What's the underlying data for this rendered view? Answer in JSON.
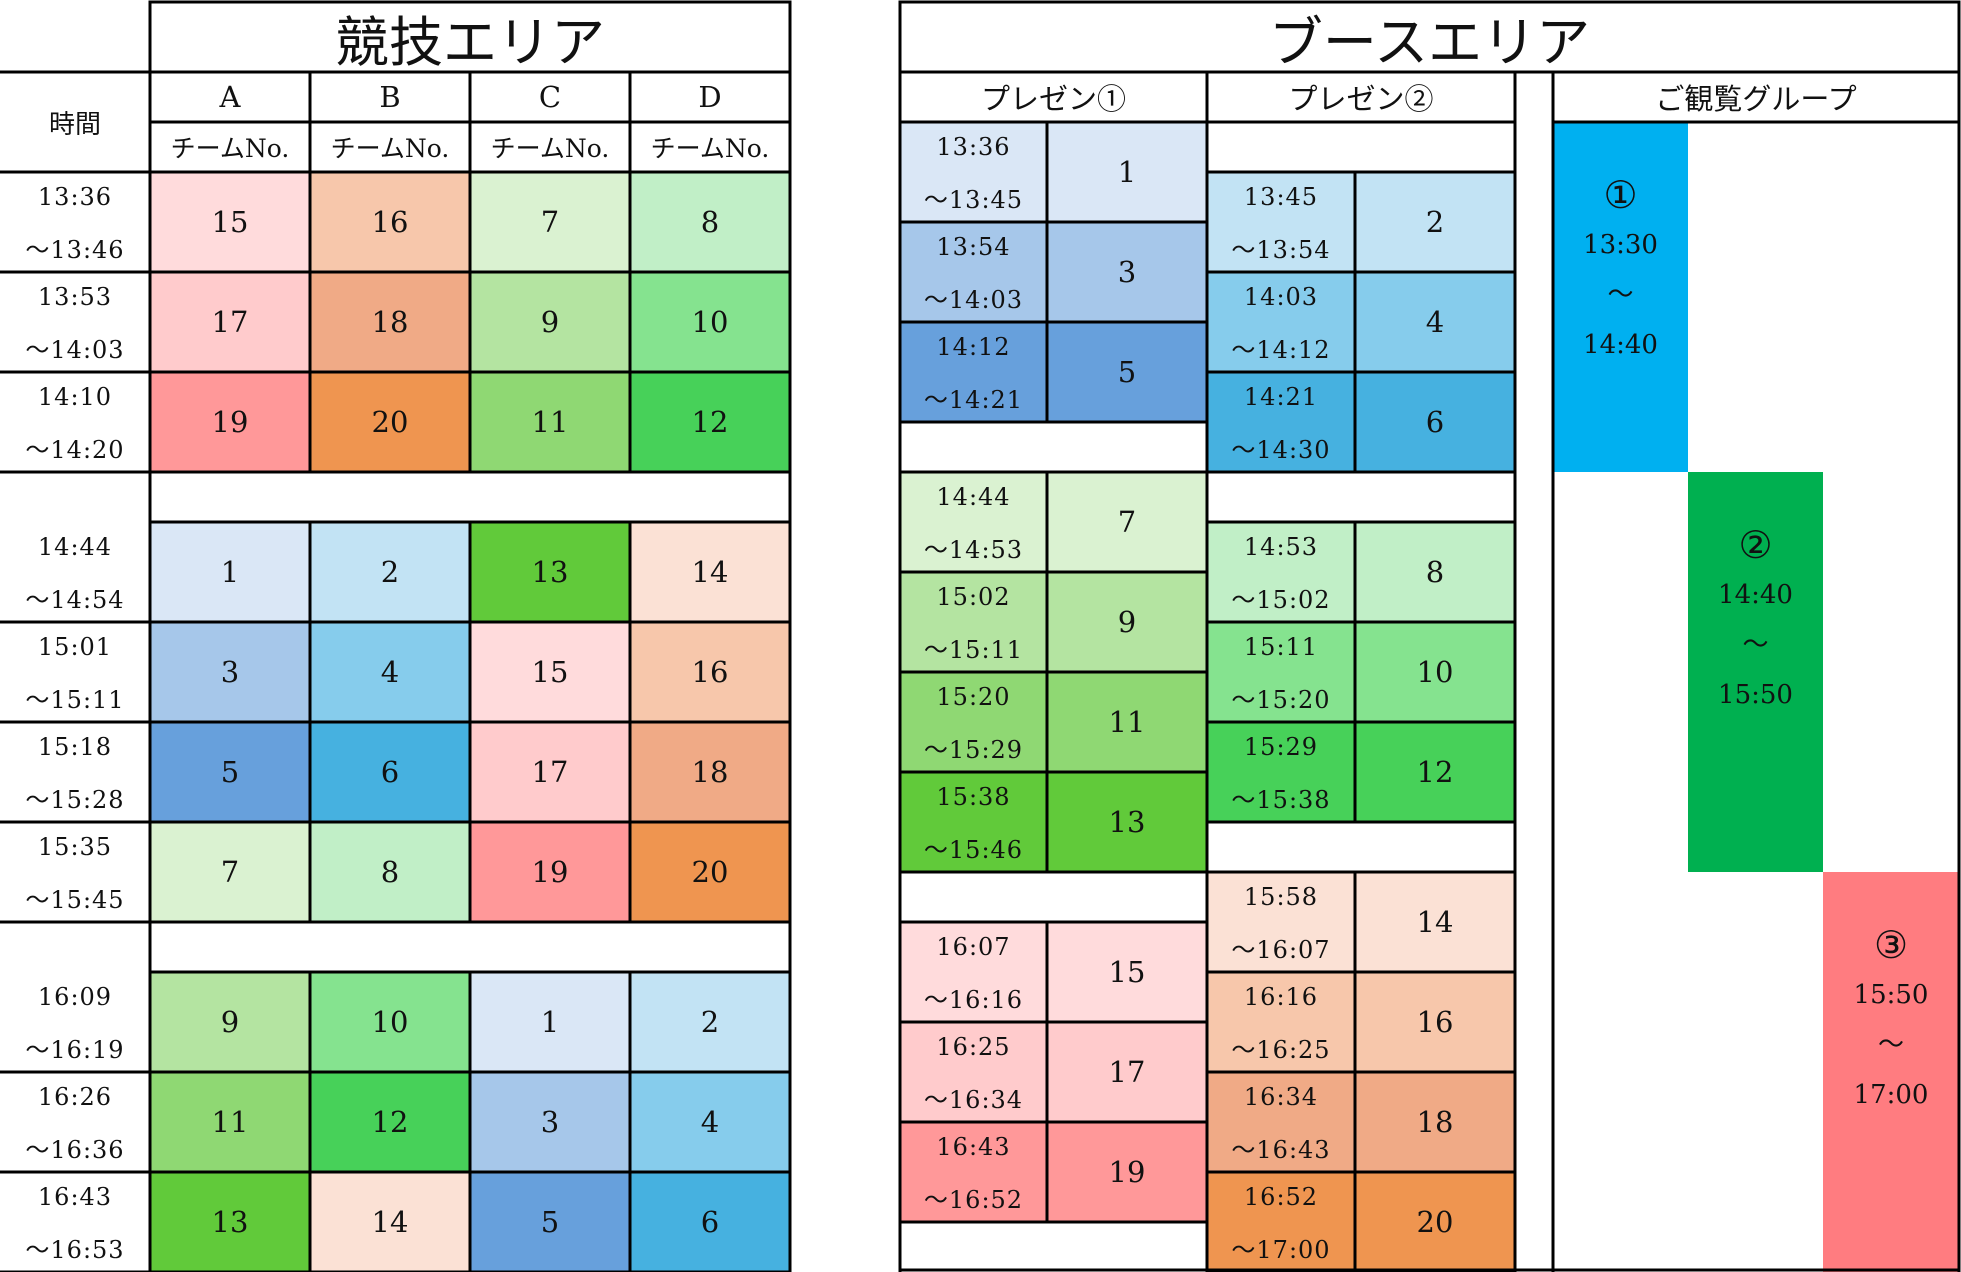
{
  "competition": {
    "title": "競技エリア",
    "time_header": "時間",
    "lanes": [
      "A",
      "B",
      "C",
      "D"
    ],
    "lane_subheader": "チームNo.",
    "blocks": [
      [
        {
          "start": "13:36",
          "end": "〜13:46",
          "teams": [
            "15",
            "16",
            "7",
            "8"
          ]
        },
        {
          "start": "13:53",
          "end": "〜14:03",
          "teams": [
            "17",
            "18",
            "9",
            "10"
          ]
        },
        {
          "start": "14:10",
          "end": "〜14:20",
          "teams": [
            "19",
            "20",
            "11",
            "12"
          ]
        }
      ],
      [
        {
          "start": "14:44",
          "end": "〜14:54",
          "teams": [
            "1",
            "2",
            "13",
            "14"
          ]
        },
        {
          "start": "15:01",
          "end": "〜15:11",
          "teams": [
            "3",
            "4",
            "15",
            "16"
          ]
        },
        {
          "start": "15:18",
          "end": "〜15:28",
          "teams": [
            "5",
            "6",
            "17",
            "18"
          ]
        },
        {
          "start": "15:35",
          "end": "〜15:45",
          "teams": [
            "7",
            "8",
            "19",
            "20"
          ]
        }
      ],
      [
        {
          "start": "16:09",
          "end": "〜16:19",
          "teams": [
            "9",
            "10",
            "1",
            "2"
          ]
        },
        {
          "start": "16:26",
          "end": "〜16:36",
          "teams": [
            "11",
            "12",
            "3",
            "4"
          ]
        },
        {
          "start": "16:43",
          "end": "〜16:53",
          "teams": [
            "13",
            "14",
            "5",
            "6"
          ]
        }
      ]
    ]
  },
  "booth": {
    "title": "ブースエリア",
    "presentation1": {
      "header": "プレゼン①",
      "blocks": [
        [
          {
            "start": "13:36",
            "end": "〜13:45",
            "team": "1"
          },
          {
            "start": "13:54",
            "end": "〜14:03",
            "team": "3"
          },
          {
            "start": "14:12",
            "end": "〜14:21",
            "team": "5"
          }
        ],
        [
          {
            "start": "14:44",
            "end": "〜14:53",
            "team": "7"
          },
          {
            "start": "15:02",
            "end": "〜15:11",
            "team": "9"
          },
          {
            "start": "15:20",
            "end": "〜15:29",
            "team": "11"
          },
          {
            "start": "15:38",
            "end": "〜15:46",
            "team": "13"
          }
        ],
        [
          {
            "start": "16:07",
            "end": "〜16:16",
            "team": "15"
          },
          {
            "start": "16:25",
            "end": "〜16:34",
            "team": "17"
          },
          {
            "start": "16:43",
            "end": "〜16:52",
            "team": "19"
          }
        ]
      ]
    },
    "presentation2": {
      "header": "プレゼン②",
      "blocks": [
        [
          {
            "start": "13:45",
            "end": "〜13:54",
            "team": "2"
          },
          {
            "start": "14:03",
            "end": "〜14:12",
            "team": "4"
          },
          {
            "start": "14:21",
            "end": "〜14:30",
            "team": "6"
          }
        ],
        [
          {
            "start": "14:53",
            "end": "〜15:02",
            "team": "8"
          },
          {
            "start": "15:11",
            "end": "〜15:20",
            "team": "10"
          },
          {
            "start": "15:29",
            "end": "〜15:38",
            "team": "12"
          }
        ],
        [
          {
            "start": "15:58",
            "end": "〜16:07",
            "team": "14"
          },
          {
            "start": "16:16",
            "end": "〜16:25",
            "team": "16"
          },
          {
            "start": "16:34",
            "end": "〜16:43",
            "team": "18"
          },
          {
            "start": "16:52",
            "end": "〜17:00",
            "team": "20"
          }
        ]
      ]
    },
    "visitors": {
      "header": "ご観覧グループ",
      "groups": [
        {
          "label": "①",
          "start": "13:30",
          "sep": "〜",
          "end": "14:40",
          "color": "#00B0F0"
        },
        {
          "label": "②",
          "start": "14:40",
          "sep": "〜",
          "end": "15:50",
          "color": "#00B050"
        },
        {
          "label": "③",
          "start": "15:50",
          "sep": "〜",
          "end": "17:00",
          "color": "#FF7C80"
        }
      ]
    }
  },
  "team_colors": {
    "1": "#DAE7F6",
    "2": "#C2E3F4",
    "3": "#A6C7EA",
    "4": "#86CCEC",
    "5": "#67A0DC",
    "6": "#46B1E0",
    "7": "#DAF2D1",
    "8": "#C1EFC7",
    "9": "#B4E4A1",
    "10": "#85E38F",
    "11": "#8FD873",
    "12": "#47D159",
    "13": "#61CA3A",
    "14": "#FBE1D5",
    "15": "#FFDBDC",
    "16": "#F7C7AB",
    "17": "#FFCBCC",
    "18": "#F0AA86",
    "19": "#FF9899",
    "20": "#EF9550"
  }
}
